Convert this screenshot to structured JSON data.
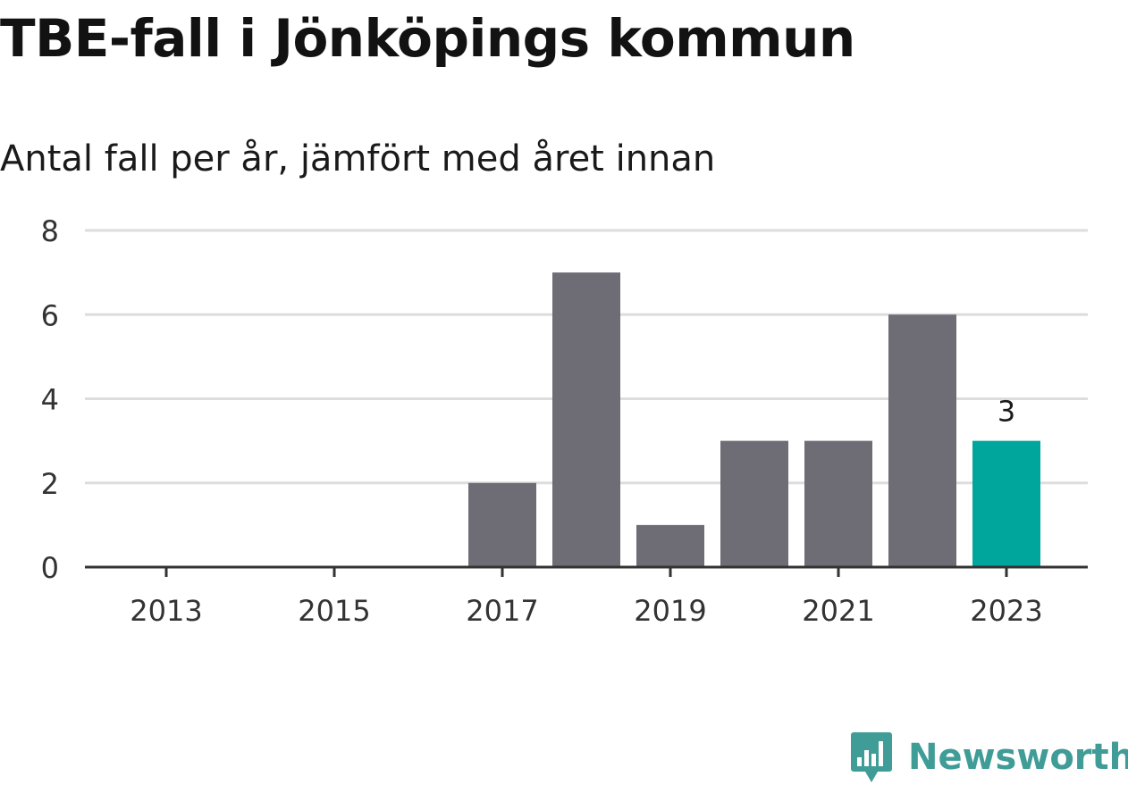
{
  "chart_data": {
    "type": "bar",
    "title": "TBE-fall i Jönköpings kommun",
    "subtitle": "Antal fall per år, jämfört med året innan",
    "xlabel": "",
    "ylabel": "",
    "categories": [
      "2013",
      "2014",
      "2015",
      "2016",
      "2017",
      "2018",
      "2019",
      "2020",
      "2021",
      "2022",
      "2023"
    ],
    "values": [
      0,
      0,
      0,
      0,
      2,
      7,
      1,
      3,
      3,
      6,
      3
    ],
    "x_tick_labels": [
      "2013",
      "2015",
      "2017",
      "2019",
      "2021",
      "2023"
    ],
    "y_ticks": [
      0,
      2,
      4,
      6,
      8
    ],
    "ylim": [
      0,
      8
    ],
    "grid": "horizontal",
    "highlight_category": "2023",
    "data_labels": [
      {
        "category": "2023",
        "text": "3"
      }
    ],
    "colors": {
      "bar": "#6e6d75",
      "highlight": "#00a59b",
      "grid": "#dddddd",
      "axis": "#333333"
    }
  },
  "branding": {
    "name": "Newsworthy",
    "logo_icon": "bar-chart-speech-bubble-icon",
    "color": "#3f9c96"
  }
}
